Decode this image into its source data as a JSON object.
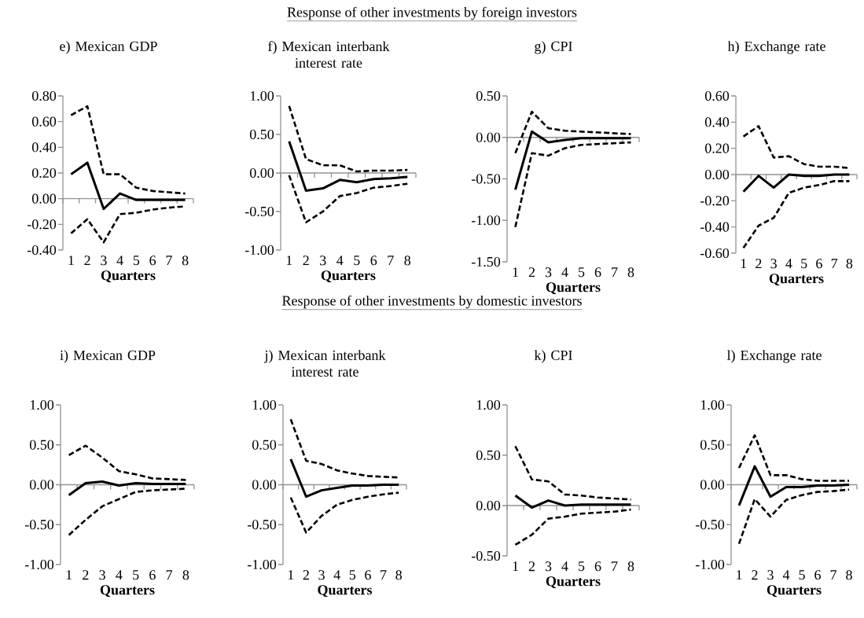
{
  "chart_data": [
    {
      "type": "other",
      "title": "Response of other investments by foreign investors"
    },
    {
      "type": "line",
      "title": "e) Mexican GDP",
      "xlabel": "Quarters",
      "categories": [
        "1",
        "2",
        "3",
        "4",
        "5",
        "6",
        "7",
        "8"
      ],
      "ylim": [
        -0.4,
        0.8
      ],
      "yticks": [
        {
          "value": -0.4,
          "label": "-0.40"
        },
        {
          "value": -0.2,
          "label": "-0.20"
        },
        {
          "value": 0,
          "label": "0.00"
        },
        {
          "value": 0.2,
          "label": "0.20"
        },
        {
          "value": 0.4,
          "label": "0.40"
        },
        {
          "value": 0.6,
          "label": "0.60"
        },
        {
          "value": 0.8,
          "label": "0.80"
        }
      ],
      "series": [
        {
          "color": "#000000",
          "line_style": "dashed",
          "values": [
            -0.27,
            -0.16,
            -0.34,
            -0.12,
            -0.11,
            -0.085,
            -0.07,
            -0.06
          ]
        },
        {
          "color": "#000000",
          "line_style": "solid",
          "values": [
            0.19,
            0.28,
            -0.08,
            0.04,
            -0.01,
            -0.01,
            -0.01,
            -0.01
          ]
        },
        {
          "color": "#000000",
          "line_style": "dashed",
          "values": [
            0.65,
            0.72,
            0.19,
            0.19,
            0.085,
            0.06,
            0.05,
            0.04
          ]
        }
      ]
    },
    {
      "type": "line",
      "title": "f) Mexican interbank interest rate",
      "xlabel": "Quarters",
      "categories": [
        "1",
        "2",
        "3",
        "4",
        "5",
        "6",
        "7",
        "8"
      ],
      "ylim": [
        -1,
        1
      ],
      "yticks": [
        {
          "value": -1,
          "label": "-1.00"
        },
        {
          "value": -0.5,
          "label": "-0.50"
        },
        {
          "value": 0,
          "label": "0.00"
        },
        {
          "value": 0.5,
          "label": "0.50"
        },
        {
          "value": 1,
          "label": "1.00"
        }
      ],
      "series": [
        {
          "color": "#000000",
          "line_style": "dashed",
          "values": [
            -0.03,
            -0.64,
            -0.5,
            -0.3,
            -0.26,
            -0.19,
            -0.17,
            -0.14
          ]
        },
        {
          "color": "#000000",
          "line_style": "solid",
          "values": [
            0.41,
            -0.23,
            -0.2,
            -0.09,
            -0.12,
            -0.08,
            -0.07,
            -0.05
          ]
        },
        {
          "color": "#000000",
          "line_style": "dashed",
          "values": [
            0.87,
            0.18,
            0.1,
            0.1,
            0.02,
            0.03,
            0.03,
            0.04
          ]
        }
      ]
    },
    {
      "type": "line",
      "title": "g) CPI",
      "xlabel": "Quarters",
      "categories": [
        "1",
        "2",
        "3",
        "4",
        "5",
        "6",
        "7",
        "8"
      ],
      "ylim": [
        -1.5,
        0.5
      ],
      "yticks": [
        {
          "value": -1.5,
          "label": "-1.50"
        },
        {
          "value": -1,
          "label": "-1.00"
        },
        {
          "value": -0.5,
          "label": "-0.50"
        },
        {
          "value": 0,
          "label": "0.00"
        },
        {
          "value": 0.5,
          "label": "0.50"
        }
      ],
      "series": [
        {
          "color": "#000000",
          "line_style": "dashed",
          "values": [
            -1.08,
            -0.19,
            -0.22,
            -0.13,
            -0.09,
            -0.08,
            -0.07,
            -0.06
          ]
        },
        {
          "color": "#000000",
          "line_style": "solid",
          "values": [
            -0.63,
            0.07,
            -0.06,
            -0.03,
            -0.01,
            -0.01,
            -0.01,
            -0.01
          ]
        },
        {
          "color": "#000000",
          "line_style": "dashed",
          "values": [
            -0.19,
            0.31,
            0.11,
            0.08,
            0.07,
            0.06,
            0.05,
            0.04
          ]
        }
      ]
    },
    {
      "type": "line",
      "title": "h) Exchange rate",
      "xlabel": "Quarters",
      "categories": [
        "1",
        "2",
        "3",
        "4",
        "5",
        "6",
        "7",
        "8"
      ],
      "ylim": [
        -0.6,
        0.6
      ],
      "yticks": [
        {
          "value": -0.6,
          "label": "-0.60"
        },
        {
          "value": -0.4,
          "label": "-0.40"
        },
        {
          "value": -0.2,
          "label": "-0.20"
        },
        {
          "value": 0,
          "label": "0.00"
        },
        {
          "value": 0.2,
          "label": "0.20"
        },
        {
          "value": 0.4,
          "label": "0.40"
        },
        {
          "value": 0.6,
          "label": "0.60"
        }
      ],
      "series": [
        {
          "color": "#000000",
          "line_style": "dashed",
          "values": [
            -0.56,
            -0.39,
            -0.33,
            -0.14,
            -0.1,
            -0.08,
            -0.05,
            -0.05
          ]
        },
        {
          "color": "#000000",
          "line_style": "solid",
          "values": [
            -0.13,
            -0.01,
            -0.1,
            0.0,
            -0.01,
            -0.01,
            0.0,
            0.0
          ]
        },
        {
          "color": "#000000",
          "line_style": "dashed",
          "values": [
            0.29,
            0.37,
            0.13,
            0.14,
            0.08,
            0.06,
            0.06,
            0.05
          ]
        }
      ]
    },
    {
      "type": "other",
      "title": "Response of other investments by domestic investors"
    },
    {
      "type": "line",
      "title": "i) Mexican GDP",
      "xlabel": "Quarters",
      "categories": [
        "1",
        "2",
        "3",
        "4",
        "5",
        "6",
        "7",
        "8"
      ],
      "ylim": [
        -1,
        1
      ],
      "yticks": [
        {
          "value": -1,
          "label": "-1.00"
        },
        {
          "value": -0.5,
          "label": "-0.50"
        },
        {
          "value": 0,
          "label": "0.00"
        },
        {
          "value": 0.5,
          "label": "0.50"
        },
        {
          "value": 1,
          "label": "1.00"
        }
      ],
      "series": [
        {
          "color": "#000000",
          "line_style": "dashed",
          "values": [
            -0.63,
            -0.44,
            -0.27,
            -0.18,
            -0.09,
            -0.07,
            -0.06,
            -0.05
          ]
        },
        {
          "color": "#000000",
          "line_style": "solid",
          "values": [
            -0.13,
            0.02,
            0.04,
            -0.01,
            0.02,
            0.01,
            0.01,
            0.01
          ]
        },
        {
          "color": "#000000",
          "line_style": "dashed",
          "values": [
            0.37,
            0.49,
            0.34,
            0.17,
            0.13,
            0.08,
            0.07,
            0.06
          ]
        }
      ]
    },
    {
      "type": "line",
      "title": "j) Mexican interbank interest rate",
      "xlabel": "Quarters",
      "categories": [
        "1",
        "2",
        "3",
        "4",
        "5",
        "6",
        "7",
        "8"
      ],
      "ylim": [
        -1,
        1
      ],
      "yticks": [
        {
          "value": -1,
          "label": "-1.00"
        },
        {
          "value": -0.5,
          "label": "-0.50"
        },
        {
          "value": 0,
          "label": "0.00"
        },
        {
          "value": 0.5,
          "label": "0.50"
        },
        {
          "value": 1,
          "label": "1.00"
        }
      ],
      "series": [
        {
          "color": "#000000",
          "line_style": "dashed",
          "values": [
            -0.16,
            -0.6,
            -0.39,
            -0.25,
            -0.19,
            -0.15,
            -0.12,
            -0.1
          ]
        },
        {
          "color": "#000000",
          "line_style": "solid",
          "values": [
            0.32,
            -0.15,
            -0.07,
            -0.04,
            -0.01,
            -0.01,
            0.0,
            0.0
          ]
        },
        {
          "color": "#000000",
          "line_style": "dashed",
          "values": [
            0.82,
            0.3,
            0.26,
            0.18,
            0.14,
            0.11,
            0.1,
            0.09
          ]
        }
      ]
    },
    {
      "type": "line",
      "title": "k) CPI",
      "xlabel": "Quarters",
      "categories": [
        "1",
        "2",
        "3",
        "4",
        "5",
        "6",
        "7",
        "8"
      ],
      "ylim": [
        -0.5,
        1
      ],
      "yticks": [
        {
          "value": -0.5,
          "label": "-0.50"
        },
        {
          "value": 0,
          "label": "0.00"
        },
        {
          "value": 0.5,
          "label": "0.50"
        },
        {
          "value": 1,
          "label": "1.00"
        }
      ],
      "series": [
        {
          "color": "#000000",
          "line_style": "dashed",
          "values": [
            -0.39,
            -0.29,
            -0.13,
            -0.11,
            -0.08,
            -0.07,
            -0.06,
            -0.04
          ]
        },
        {
          "color": "#000000",
          "line_style": "solid",
          "values": [
            0.1,
            -0.02,
            0.05,
            0.0,
            0.01,
            0.01,
            0.01,
            0.01
          ]
        },
        {
          "color": "#000000",
          "line_style": "dashed",
          "values": [
            0.59,
            0.26,
            0.24,
            0.11,
            0.1,
            0.08,
            0.07,
            0.06
          ]
        }
      ]
    },
    {
      "type": "line",
      "title": "l) Exchange rate",
      "xlabel": "Quarters",
      "categories": [
        "1",
        "2",
        "3",
        "4",
        "5",
        "6",
        "7",
        "8"
      ],
      "ylim": [
        -1,
        1
      ],
      "yticks": [
        {
          "value": -1,
          "label": "-1.00"
        },
        {
          "value": -0.5,
          "label": "-0.50"
        },
        {
          "value": 0,
          "label": "0.00"
        },
        {
          "value": 0.5,
          "label": "0.50"
        },
        {
          "value": 1,
          "label": "1.00"
        }
      ],
      "series": [
        {
          "color": "#000000",
          "line_style": "dashed",
          "values": [
            -0.74,
            -0.18,
            -0.4,
            -0.19,
            -0.13,
            -0.09,
            -0.08,
            -0.06
          ]
        },
        {
          "color": "#000000",
          "line_style": "solid",
          "values": [
            -0.26,
            0.23,
            -0.15,
            -0.03,
            -0.03,
            -0.01,
            -0.01,
            0.0
          ]
        },
        {
          "color": "#000000",
          "line_style": "dashed",
          "values": [
            0.21,
            0.62,
            0.12,
            0.12,
            0.07,
            0.05,
            0.05,
            0.05
          ]
        }
      ]
    }
  ]
}
